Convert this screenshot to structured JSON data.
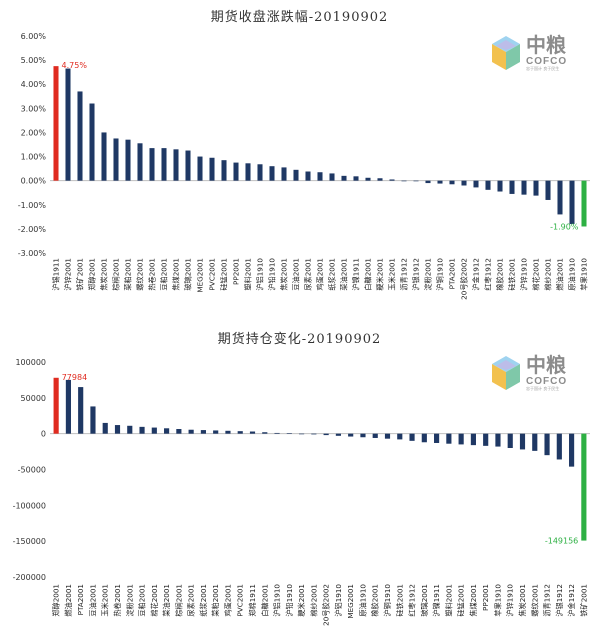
{
  "logo": {
    "cn": "中粮",
    "en": "COFCO",
    "tagline": "忠于国计 良于民生"
  },
  "colors": {
    "bar": "#1f3864",
    "max": "#e02b20",
    "min": "#2db043",
    "axis": "#bfbfbf",
    "maxLabel": "#e02b20",
    "minLabel": "#2db043"
  },
  "chart_data": [
    {
      "type": "bar",
      "title": "期货收盘涨跌幅-20190902",
      "ylim": [
        -3.0,
        6.0
      ],
      "yticks": [
        "6.00%",
        "5.00%",
        "4.00%",
        "3.00%",
        "2.00%",
        "1.00%",
        "0.00%",
        "-1.00%",
        "-2.00%",
        "-3.00%"
      ],
      "ytick_values": [
        6,
        5,
        4,
        3,
        2,
        1,
        0,
        -1,
        -2,
        -3
      ],
      "max_label": "4.75%",
      "min_label": "-1.90%",
      "categories": [
        "沪锡1911",
        "沪锌2001",
        "铁矿2001",
        "郑醇2001",
        "焦炭2001",
        "棕榈2001",
        "菜粕2001",
        "螺纹2001",
        "热卷2001",
        "豆粕2001",
        "焦煤2001",
        "玻璃2001",
        "MEG2001",
        "PVC2001",
        "硅锰2001",
        "PP2001",
        "塑料2001",
        "沪铝1910",
        "沪铅1910",
        "焦炭2001",
        "豆油2001",
        "尿素2001",
        "鸡蛋2001",
        "纸浆2001",
        "菜油2001",
        "沪镍1911",
        "白糖2001",
        "粳米2001",
        "玉米2001",
        "沥青1912",
        "沪银1912",
        "淀粉2001",
        "沪铜1910",
        "PTA2001",
        "20号胶2002",
        "沪金1912",
        "红枣1912",
        "橡胶2001",
        "硅铁2001",
        "沪锌1910",
        "棉花2001",
        "棉纱2001",
        "燃油2001",
        "原油1910",
        "苹果1910"
      ],
      "values": [
        4.75,
        4.65,
        3.7,
        3.2,
        2.0,
        1.75,
        1.7,
        1.55,
        1.35,
        1.35,
        1.3,
        1.25,
        1.0,
        0.95,
        0.85,
        0.75,
        0.72,
        0.68,
        0.6,
        0.55,
        0.45,
        0.38,
        0.35,
        0.3,
        0.2,
        0.18,
        0.12,
        0.1,
        0.05,
        0.0,
        0.0,
        -0.1,
        -0.12,
        -0.15,
        -0.2,
        -0.28,
        -0.38,
        -0.45,
        -0.55,
        -0.58,
        -0.62,
        -0.8,
        -1.4,
        -1.8,
        -1.9
      ]
    },
    {
      "type": "bar",
      "title": "期货持仓变化-20190902",
      "ylim": [
        -200000,
        100000
      ],
      "yticks": [
        "100000",
        "50000",
        "0",
        "-50000",
        "-100000",
        "-150000",
        "-200000"
      ],
      "ytick_values": [
        100000,
        50000,
        0,
        -50000,
        -100000,
        -150000,
        -200000
      ],
      "max_label": "77984",
      "min_label": "-149156",
      "categories": [
        "郑醇2001",
        "燃油2001",
        "PTA2001",
        "豆油2001",
        "玉米2001",
        "热卷2001",
        "淀粉2001",
        "豆粕2001",
        "棉花2001",
        "菜油2001",
        "棕榈2001",
        "尿素2001",
        "纸浆2001",
        "菜粕2001",
        "鸡蛋2001",
        "PVC2001",
        "郑棉1911",
        "白糖2001",
        "沪铝1910",
        "沪铅1910",
        "粳米2001",
        "棉纱2001",
        "20号胶2002",
        "沪铝1910",
        "MEG2001",
        "原油1910",
        "橡胶2001",
        "沪铜1910",
        "硅铁2001",
        "红枣1912",
        "玻璃2001",
        "沪镍1911",
        "塑料2001",
        "硅锰2001",
        "焦煤2001",
        "PP2001",
        "苹果1910",
        "沪锌1910",
        "焦炭2001",
        "螺纹2001",
        "沥青1912",
        "沪银1912",
        "沪金1912",
        "铁矿2001"
      ],
      "values": [
        77984,
        75000,
        65000,
        38000,
        15000,
        12000,
        11000,
        9500,
        8500,
        7500,
        6500,
        5500,
        5000,
        4500,
        4000,
        3500,
        3000,
        2000,
        1000,
        500,
        0,
        -1000,
        -2000,
        -3000,
        -4000,
        -5000,
        -6000,
        -7000,
        -8000,
        -10000,
        -12000,
        -13000,
        -14000,
        -15000,
        -16000,
        -17000,
        -18000,
        -20000,
        -22000,
        -24000,
        -30000,
        -36000,
        -46000,
        -149156
      ]
    }
  ]
}
